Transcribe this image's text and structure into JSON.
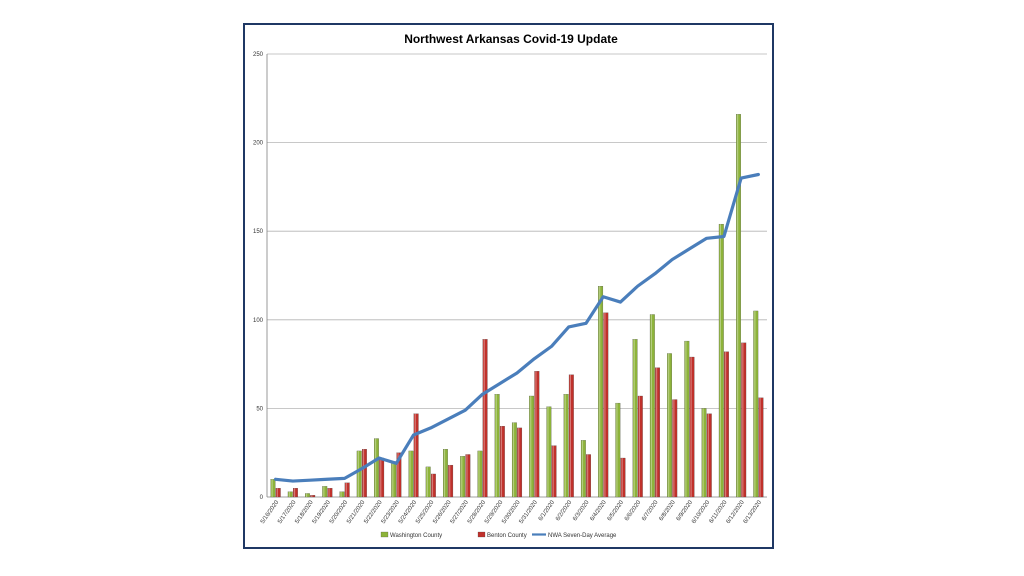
{
  "chart_data": {
    "type": "bar",
    "title": "Northwest Arkansas Covid-19 Update",
    "xlabel": "",
    "ylabel": "",
    "ylim": [
      0,
      250
    ],
    "yticks": [
      0,
      50,
      100,
      150,
      200,
      250
    ],
    "grid": true,
    "legend_position": "bottom",
    "categories": [
      "5/16/2020",
      "5/17/2020",
      "5/18/2020",
      "5/19/2020",
      "5/20/2020",
      "5/21/2020",
      "5/22/2020",
      "5/23/2020",
      "5/24/2020",
      "5/25/2020",
      "5/26/2020",
      "5/27/2020",
      "5/28/2020",
      "5/29/2020",
      "5/30/2020",
      "5/31/2020",
      "6/1/2020",
      "6/2/2020",
      "6/3/2020",
      "6/4/2020",
      "6/5/2020",
      "6/6/2020",
      "6/7/2020",
      "6/8/2020",
      "6/9/2020",
      "6/10/2020",
      "6/11/2020",
      "6/12/2020",
      "6/13/2020"
    ],
    "series": [
      {
        "name": "Washington County",
        "type": "bar",
        "color": "#8db33a",
        "values": [
          10,
          3,
          2,
          6,
          3,
          26,
          33,
          20,
          26,
          17,
          27,
          23,
          26,
          58,
          42,
          57,
          51,
          58,
          32,
          119,
          53,
          89,
          103,
          81,
          88,
          50,
          154,
          216,
          105
        ]
      },
      {
        "name": "Benton County",
        "type": "bar",
        "color": "#c0312b",
        "values": [
          5,
          5,
          1,
          5,
          8,
          27,
          22,
          25,
          47,
          13,
          18,
          24,
          89,
          40,
          39,
          71,
          29,
          69,
          24,
          104,
          22,
          57,
          73,
          55,
          79,
          47,
          82,
          87,
          56
        ]
      },
      {
        "name": "NWA Seven-Day Average",
        "type": "line",
        "color": "#4a7ebb",
        "values": [
          10,
          9,
          9.5,
          10,
          10.5,
          16,
          22,
          19,
          35,
          39,
          44,
          49,
          58,
          64,
          70,
          78,
          85,
          96,
          98,
          113,
          110,
          119,
          126,
          134,
          140,
          146,
          147,
          180,
          182
        ]
      }
    ]
  }
}
